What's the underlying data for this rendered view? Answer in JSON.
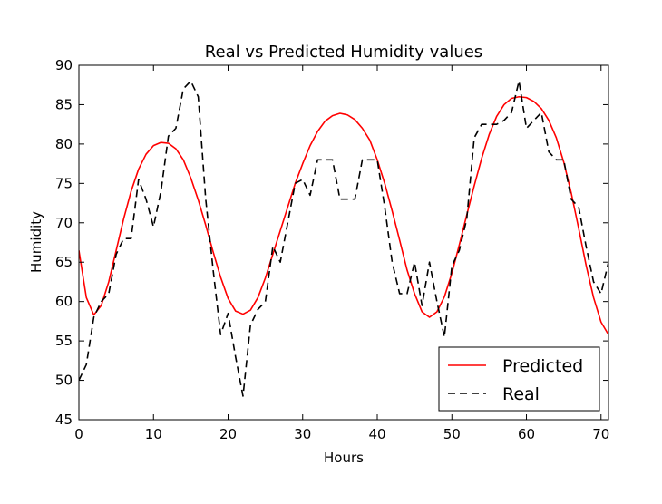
{
  "chart_data": {
    "type": "line",
    "title": "Real vs Predicted Humidity values",
    "xlabel": "Hours",
    "ylabel": "Humidity",
    "xlim": [
      0,
      71
    ],
    "ylim": [
      45,
      90
    ],
    "xticks": [
      0,
      10,
      20,
      30,
      40,
      50,
      60,
      70
    ],
    "yticks": [
      45,
      50,
      55,
      60,
      65,
      70,
      75,
      80,
      85,
      90
    ],
    "grid": false,
    "legend_position": "lower-right",
    "series": [
      {
        "name": "Predicted",
        "color": "#ff0000",
        "style": "solid",
        "x": [
          0,
          1,
          2,
          3,
          4,
          5,
          6,
          7,
          8,
          9,
          10,
          11,
          12,
          13,
          14,
          15,
          16,
          17,
          18,
          19,
          20,
          21,
          22,
          23,
          24,
          25,
          26,
          27,
          28,
          29,
          30,
          31,
          32,
          33,
          34,
          35,
          36,
          37,
          38,
          39,
          40,
          41,
          42,
          43,
          44,
          45,
          46,
          47,
          48,
          49,
          50,
          51,
          52,
          53,
          54,
          55,
          56,
          57,
          58,
          59,
          60,
          61,
          62,
          63,
          64,
          65,
          66,
          67,
          68,
          69,
          70,
          71
        ],
        "values": [
          66.5,
          60.5,
          58.3,
          59.5,
          62.5,
          66.5,
          70.5,
          74.0,
          76.8,
          78.7,
          79.8,
          80.2,
          80.1,
          79.4,
          78.0,
          75.7,
          72.9,
          69.7,
          66.3,
          63.1,
          60.4,
          58.8,
          58.4,
          58.9,
          60.5,
          63.0,
          66.0,
          69.0,
          72.0,
          75.0,
          77.5,
          79.8,
          81.6,
          82.9,
          83.6,
          83.9,
          83.7,
          83.1,
          82.0,
          80.5,
          78.0,
          75.0,
          71.5,
          67.8,
          64.0,
          61.0,
          58.7,
          58.0,
          58.7,
          60.6,
          63.6,
          67.2,
          71.0,
          74.7,
          78.2,
          81.2,
          83.5,
          85.0,
          85.8,
          86.0,
          85.9,
          85.4,
          84.5,
          83.0,
          80.8,
          77.7,
          73.8,
          69.3,
          64.6,
          60.5,
          57.4,
          55.8
        ]
      },
      {
        "name": "Real",
        "color": "#000000",
        "style": "dashed",
        "x": [
          0,
          1,
          2,
          3,
          4,
          5,
          6,
          7,
          8,
          9,
          10,
          11,
          12,
          13,
          14,
          15,
          16,
          17,
          18,
          19,
          20,
          21,
          22,
          23,
          24,
          25,
          26,
          27,
          28,
          29,
          30,
          31,
          32,
          33,
          34,
          35,
          36,
          37,
          38,
          39,
          40,
          41,
          42,
          43,
          44,
          45,
          46,
          47,
          48,
          49,
          50,
          51,
          52,
          53,
          54,
          55,
          56,
          57,
          58,
          59,
          60,
          61,
          62,
          63,
          64,
          65,
          66,
          67,
          68,
          69,
          70,
          71
        ],
        "values": [
          50.0,
          52.0,
          58.0,
          60.0,
          61.0,
          66.0,
          68.0,
          68.0,
          75.5,
          73.0,
          69.5,
          74.0,
          81.0,
          82.0,
          87.0,
          88.0,
          86.0,
          73.0,
          64.0,
          55.8,
          58.5,
          53.0,
          48.0,
          57.0,
          59.0,
          60.0,
          67.0,
          65.0,
          70.0,
          75.0,
          75.5,
          73.5,
          78.0,
          78.0,
          78.0,
          73.0,
          73.0,
          73.0,
          78.0,
          78.0,
          78.0,
          72.0,
          65.0,
          61.0,
          61.0,
          65.0,
          59.5,
          65.0,
          60.0,
          55.5,
          64.5,
          66.5,
          70.5,
          80.8,
          82.5,
          82.5,
          82.5,
          83.0,
          84.0,
          88.0,
          82.0,
          83.0,
          84.0,
          79.0,
          78.0,
          78.0,
          73.0,
          72.0,
          67.0,
          62.5,
          61.0,
          65.0
        ]
      }
    ]
  }
}
